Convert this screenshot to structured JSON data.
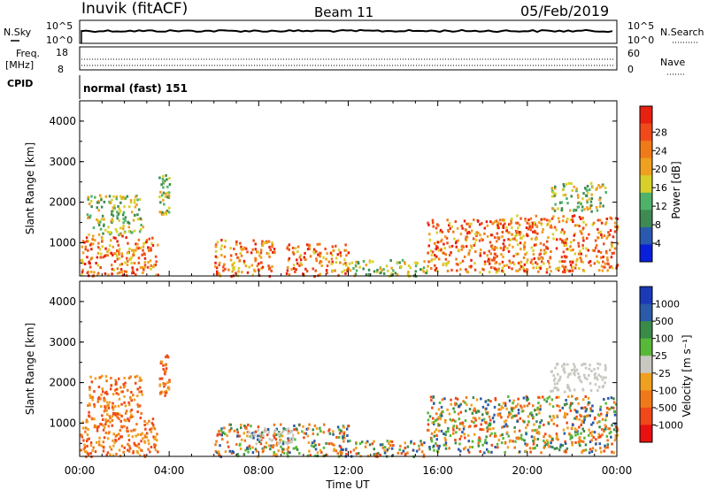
{
  "header": {
    "station": "Inuvik (fitACF)",
    "beam": "Beam 11",
    "date": "05/Feb/2019"
  },
  "top_panels": {
    "nsky_label": "N.Sky",
    "nsky_ticks_left": [
      "10^5",
      "10^0"
    ],
    "nsky_ticks_right": [
      "10^5",
      "10^0"
    ],
    "nsearch_label": "N.Search",
    "freq_label_1": "Freq.",
    "freq_label_2": "[MHz]",
    "freq_ticks_left": [
      "18",
      "8"
    ],
    "nave_ticks_right": [
      "60",
      "0"
    ],
    "nave_label": "Nave",
    "cpid_label": "CPID",
    "cpid_value": "normal (fast) 151"
  },
  "x_axis": {
    "label": "Time UT",
    "ticks": [
      "00:00",
      "04:00",
      "08:00",
      "12:00",
      "16:00",
      "20:00",
      "00:00"
    ]
  },
  "colors": {
    "power_scale": [
      "#0a1fd9",
      "#2a5ab0",
      "#3f8a52",
      "#4fb26a",
      "#d8d02a",
      "#f0a020",
      "#f07a18",
      "#f04a1a",
      "#e82010"
    ],
    "velocity_scale": [
      "#e81010",
      "#f04818",
      "#f07818",
      "#f0a020",
      "#c8c8c0",
      "#58b838",
      "#3a8a48",
      "#2a5aa8",
      "#1a3ab8"
    ]
  },
  "chart_data": [
    {
      "type": "heatmap",
      "title": "",
      "xlabel": "Time UT",
      "ylabel": "Slant Range [km]",
      "ylim": [
        180,
        4500
      ],
      "xlim": [
        "00:00",
        "24:00"
      ],
      "y_ticks": [
        "1000",
        "2000",
        "3000",
        "4000"
      ],
      "colorbar_label": "Power [dB]",
      "colorbar_ticks": [
        "4",
        "8",
        "12",
        "16",
        "20",
        "24",
        "28"
      ],
      "scatter_regions": [
        {
          "t_start": 0.0,
          "t_end": 3.5,
          "range_start": 200,
          "range_end": 1200,
          "level": "high"
        },
        {
          "t_start": 0.3,
          "t_end": 2.8,
          "range_start": 1200,
          "range_end": 2200,
          "level": "mid"
        },
        {
          "t_start": 3.5,
          "t_end": 4.0,
          "range_start": 1700,
          "range_end": 2700,
          "level": "mid"
        },
        {
          "t_start": 6.0,
          "t_end": 8.7,
          "range_start": 200,
          "range_end": 1100,
          "level": "high"
        },
        {
          "t_start": 9.2,
          "t_end": 12.0,
          "range_start": 200,
          "range_end": 1000,
          "level": "high"
        },
        {
          "t_start": 12.0,
          "t_end": 15.5,
          "range_start": 200,
          "range_end": 600,
          "level": "mid"
        },
        {
          "t_start": 15.5,
          "t_end": 19.0,
          "range_start": 300,
          "range_end": 1600,
          "level": "high"
        },
        {
          "t_start": 19.0,
          "t_end": 24.0,
          "range_start": 300,
          "range_end": 1700,
          "level": "high"
        },
        {
          "t_start": 21.0,
          "t_end": 23.5,
          "range_start": 1800,
          "range_end": 2500,
          "level": "mid"
        }
      ]
    },
    {
      "type": "heatmap",
      "title": "",
      "xlabel": "Time UT",
      "ylabel": "Slant Range [km]",
      "ylim": [
        180,
        4500
      ],
      "xlim": [
        "00:00",
        "24:00"
      ],
      "y_ticks": [
        "1000",
        "2000",
        "3000",
        "4000"
      ],
      "colorbar_label": "Velocity [m s⁻¹]",
      "colorbar_ticks": [
        "1000",
        "500",
        "100",
        "25",
        "-25",
        "-100",
        "-500",
        "-1000"
      ],
      "scatter_regions": [
        {
          "t_start": 0.0,
          "t_end": 3.5,
          "range_start": 200,
          "range_end": 1200,
          "level": "neg"
        },
        {
          "t_start": 0.3,
          "t_end": 2.8,
          "range_start": 1200,
          "range_end": 2200,
          "level": "neg"
        },
        {
          "t_start": 3.5,
          "t_end": 4.0,
          "range_start": 1700,
          "range_end": 2700,
          "level": "neg"
        },
        {
          "t_start": 6.0,
          "t_end": 12.0,
          "range_start": 200,
          "range_end": 1000,
          "level": "mixed"
        },
        {
          "t_start": 7.5,
          "t_end": 9.5,
          "range_start": 500,
          "range_end": 900,
          "level": "zero"
        },
        {
          "t_start": 12.0,
          "t_end": 15.5,
          "range_start": 200,
          "range_end": 600,
          "level": "mixed"
        },
        {
          "t_start": 15.5,
          "t_end": 24.0,
          "range_start": 300,
          "range_end": 1700,
          "level": "mixed"
        },
        {
          "t_start": 21.0,
          "t_end": 23.5,
          "range_start": 1800,
          "range_end": 2500,
          "level": "zero"
        }
      ]
    }
  ]
}
